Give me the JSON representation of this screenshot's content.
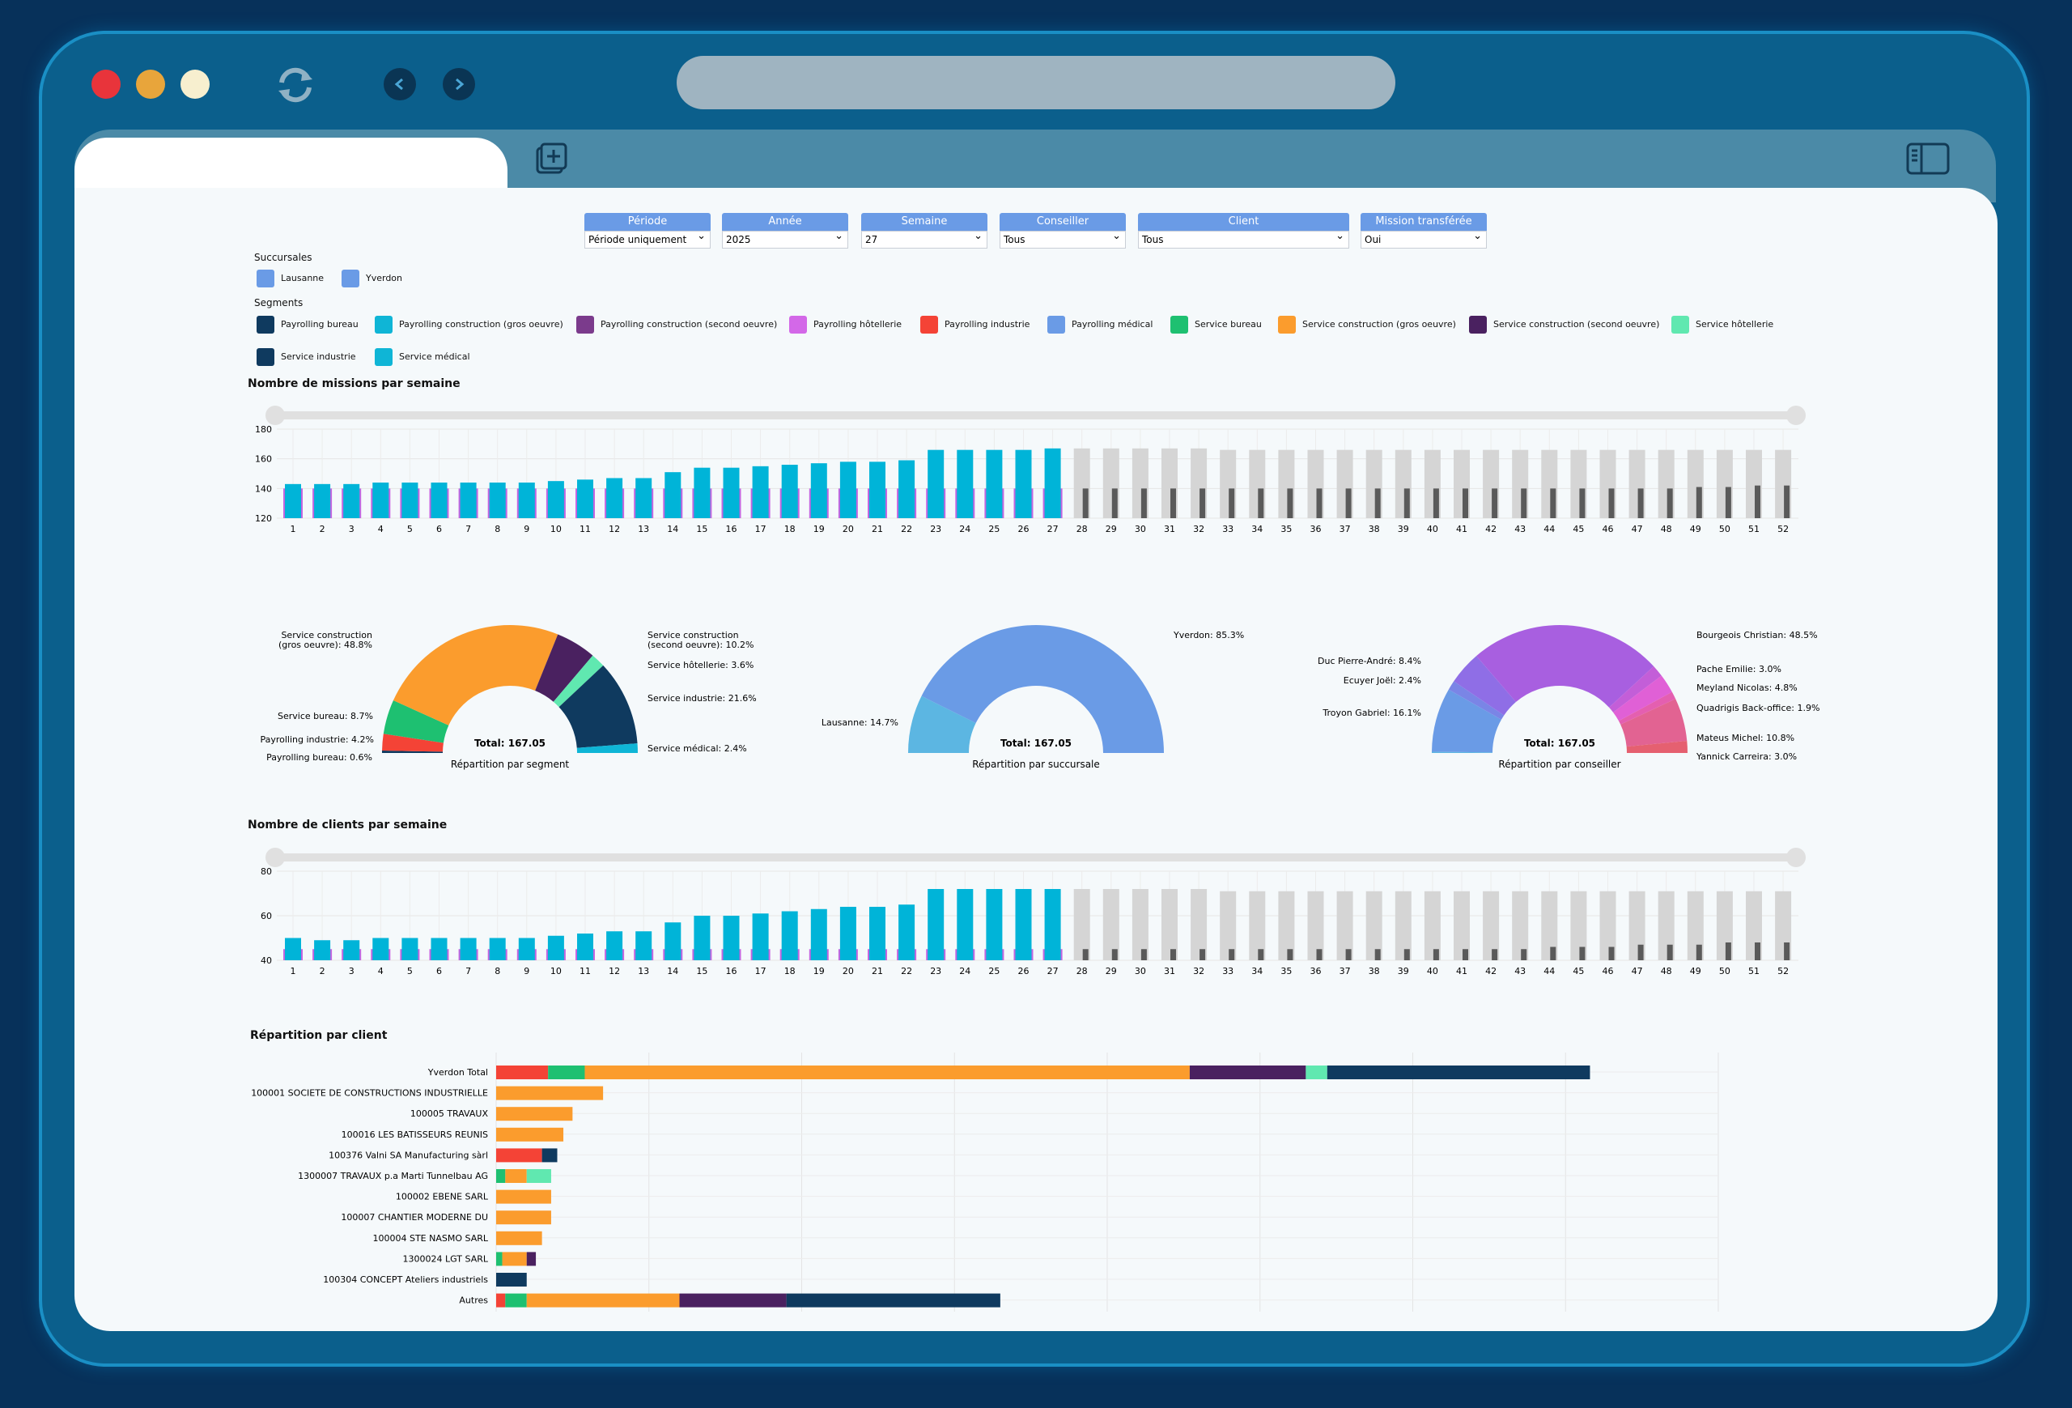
{
  "colors": {
    "accent": "#00b4d8",
    "grey": "#d5d5d5",
    "dark": "#5a5a5a",
    "frame": "#0b5f8c"
  },
  "filters": [
    {
      "label": "Période",
      "value": "Période uniquement"
    },
    {
      "label": "Année",
      "value": "2025"
    },
    {
      "label": "Semaine",
      "value": "27"
    },
    {
      "label": "Conseiller",
      "value": "Tous"
    },
    {
      "label": "Client",
      "value": "Tous"
    },
    {
      "label": "Mission transférée",
      "value": "Oui"
    }
  ],
  "succursales": {
    "title": "Succursales",
    "items": [
      {
        "label": "Lausanne",
        "color": "#6a9be6"
      },
      {
        "label": "Yverdon",
        "color": "#6a9be6"
      }
    ]
  },
  "segments": {
    "title": "Segments",
    "items": [
      {
        "label": "Payrolling bureau",
        "color": "#0f3a5f"
      },
      {
        "label": "Payrolling construction (gros oeuvre)",
        "color": "#0fb5d6"
      },
      {
        "label": "Payrolling construction (second oeuvre)",
        "color": "#7b3b8c"
      },
      {
        "label": "Payrolling hôtellerie",
        "color": "#d368e8"
      },
      {
        "label": "Payrolling industrie",
        "color": "#f44336"
      },
      {
        "label": "Payrolling médical",
        "color": "#6a9be6"
      },
      {
        "label": "Service bureau",
        "color": "#1ec071"
      },
      {
        "label": "Service construction (gros oeuvre)",
        "color": "#fb9c2d"
      },
      {
        "label": "Service construction (second oeuvre)",
        "color": "#4a2160"
      },
      {
        "label": "Service hôtellerie",
        "color": "#60e8b0"
      },
      {
        "label": "Service industrie",
        "color": "#0f3a5f"
      },
      {
        "label": "Service médical",
        "color": "#0fb5d6"
      }
    ]
  },
  "chart_data": [
    {
      "type": "bar",
      "title": "Nombre de missions par semaine",
      "x": [
        1,
        2,
        3,
        4,
        5,
        6,
        7,
        8,
        9,
        10,
        11,
        12,
        13,
        14,
        15,
        16,
        17,
        18,
        19,
        20,
        21,
        22,
        23,
        24,
        25,
        26,
        27,
        28,
        29,
        30,
        31,
        32,
        33,
        34,
        35,
        36,
        37,
        38,
        39,
        40,
        41,
        42,
        43,
        44,
        45,
        46,
        47,
        48,
        49,
        50,
        51,
        52
      ],
      "values": [
        143,
        143,
        143,
        144,
        144,
        144,
        144,
        144,
        144,
        145,
        146,
        147,
        147,
        151,
        154,
        154,
        155,
        156,
        157,
        158,
        158,
        159,
        166,
        166,
        166,
        166,
        167,
        167,
        167,
        167,
        167,
        167,
        166,
        166,
        166,
        166,
        166,
        166,
        166,
        166,
        166,
        166,
        166,
        166,
        166,
        166,
        166,
        166,
        166,
        166,
        166,
        166
      ],
      "previous": [
        140,
        140,
        140,
        140,
        140,
        140,
        140,
        140,
        140,
        140,
        140,
        140,
        140,
        140,
        140,
        140,
        140,
        140,
        140,
        140,
        140,
        140,
        140,
        140,
        140,
        140,
        140,
        140,
        140,
        140,
        140,
        140,
        140,
        140,
        140,
        140,
        140,
        140,
        140,
        140,
        140,
        140,
        140,
        140,
        140,
        140,
        140,
        140,
        141,
        141,
        142,
        142
      ],
      "ylim": [
        120,
        180
      ],
      "yticks": [
        120,
        140,
        160,
        180
      ],
      "current_week": 27
    },
    {
      "type": "pie",
      "title": "Répartition par segment",
      "total_label": "Total: 167.05",
      "slices": [
        {
          "label": "Payrolling bureau: 0.6%",
          "value": 0.6,
          "color": "#0f3a5f"
        },
        {
          "label": "Payrolling industrie: 4.2%",
          "value": 4.2,
          "color": "#f44336"
        },
        {
          "label": "Service bureau: 8.7%",
          "value": 8.7,
          "color": "#1ec071"
        },
        {
          "label": "Service construction (gros oeuvre): 48.8%",
          "value": 48.8,
          "color": "#fb9c2d"
        },
        {
          "label": "Service construction (second oeuvre): 10.2%",
          "value": 10.2,
          "color": "#4a2160"
        },
        {
          "label": "Service hôtellerie: 3.6%",
          "value": 3.6,
          "color": "#60e8b0"
        },
        {
          "label": "Service industrie: 21.6%",
          "value": 21.6,
          "color": "#0f3a5f"
        },
        {
          "label": "Service médical: 2.4%",
          "value": 2.4,
          "color": "#0fb5d6"
        }
      ]
    },
    {
      "type": "pie",
      "title": "Répartition par succursale",
      "total_label": "Total: 167.05",
      "slices": [
        {
          "label": "Lausanne: 14.7%",
          "value": 14.7,
          "color": "#5cb6e2"
        },
        {
          "label": "Yverdon: 85.3%",
          "value": 85.3,
          "color": "#6a9be6"
        }
      ]
    },
    {
      "type": "pie",
      "title": "Répartition par conseiller",
      "total_label": "Total: 167.05",
      "slices": [
        {
          "label": "",
          "value": 0.3,
          "color": "#5cb6e2"
        },
        {
          "label": "Troyon Gabriel: 16.1%",
          "value": 16.1,
          "color": "#6a9be6"
        },
        {
          "label": "Ecuyer Joël: 2.4%",
          "value": 2.4,
          "color": "#7a85e6"
        },
        {
          "label": "Duc Pierre-André: 8.4%",
          "value": 8.4,
          "color": "#8f6ee6"
        },
        {
          "label": "Bourgeois Christian: 48.5%",
          "value": 48.5,
          "color": "#a85fe0"
        },
        {
          "label": "Pache Emilie: 3.0%",
          "value": 3.0,
          "color": "#c35ed8"
        },
        {
          "label": "Meyland Nicolas: 4.8%",
          "value": 4.8,
          "color": "#e060d6"
        },
        {
          "label": "Quadrigis Back-office: 1.9%",
          "value": 1.9,
          "color": "#e45fb0"
        },
        {
          "label": "Mateus Michel: 10.8%",
          "value": 10.8,
          "color": "#e26392"
        },
        {
          "label": "Yannick Carreira: 3.0%",
          "value": 3.0,
          "color": "#e56070"
        }
      ]
    },
    {
      "type": "bar",
      "title": "Nombre de clients par semaine",
      "x": [
        1,
        2,
        3,
        4,
        5,
        6,
        7,
        8,
        9,
        10,
        11,
        12,
        13,
        14,
        15,
        16,
        17,
        18,
        19,
        20,
        21,
        22,
        23,
        24,
        25,
        26,
        27,
        28,
        29,
        30,
        31,
        32,
        33,
        34,
        35,
        36,
        37,
        38,
        39,
        40,
        41,
        42,
        43,
        44,
        45,
        46,
        47,
        48,
        49,
        50,
        51,
        52
      ],
      "values": [
        50,
        49,
        49,
        50,
        50,
        50,
        50,
        50,
        50,
        51,
        52,
        53,
        53,
        57,
        60,
        60,
        61,
        62,
        63,
        64,
        64,
        65,
        72,
        72,
        72,
        72,
        72,
        72,
        72,
        72,
        72,
        72,
        71,
        71,
        71,
        71,
        71,
        71,
        71,
        71,
        71,
        71,
        71,
        71,
        71,
        71,
        71,
        71,
        71,
        71,
        71,
        71
      ],
      "previous": [
        45,
        45,
        45,
        45,
        45,
        45,
        45,
        45,
        45,
        45,
        45,
        45,
        45,
        45,
        45,
        45,
        45,
        45,
        45,
        45,
        45,
        45,
        45,
        45,
        45,
        45,
        45,
        45,
        45,
        45,
        45,
        45,
        45,
        45,
        45,
        45,
        45,
        45,
        45,
        45,
        45,
        45,
        45,
        46,
        46,
        46,
        47,
        47,
        47,
        48,
        48,
        48
      ],
      "ylim": [
        40,
        80
      ],
      "yticks": [
        40,
        60,
        80
      ],
      "current_week": 27
    },
    {
      "type": "bar",
      "title": "Répartition par client",
      "orientation": "horizontal",
      "stacked": true,
      "rows": [
        {
          "label": "Yverdon     Total",
          "segments": [
            {
              "value": 17,
              "color": "#f44336"
            },
            {
              "value": 12,
              "color": "#1ec071"
            },
            {
              "value": 198,
              "color": "#fb9c2d"
            },
            {
              "value": 38,
              "color": "#4a2160"
            },
            {
              "value": 7,
              "color": "#60e8b0"
            },
            {
              "value": 86,
              "color": "#0f3a5f"
            }
          ]
        },
        {
          "label": "100001 SOCIETE DE CONSTRUCTIONS INDUSTRIELLE",
          "segments": [
            {
              "value": 35,
              "color": "#fb9c2d"
            }
          ]
        },
        {
          "label": "100005 TRAVAUX",
          "segments": [
            {
              "value": 25,
              "color": "#fb9c2d"
            }
          ]
        },
        {
          "label": "100016 LES BATISSEURS REUNIS",
          "segments": [
            {
              "value": 22,
              "color": "#fb9c2d"
            }
          ]
        },
        {
          "label": "100376 Valni SA Manufacturing sàrl",
          "segments": [
            {
              "value": 15,
              "color": "#f44336"
            },
            {
              "value": 5,
              "color": "#0f3a5f"
            }
          ]
        },
        {
          "label": "1300007 TRAVAUX p.a Marti Tunnelbau AG",
          "segments": [
            {
              "value": 3,
              "color": "#1ec071"
            },
            {
              "value": 7,
              "color": "#fb9c2d"
            },
            {
              "value": 8,
              "color": "#60e8b0"
            }
          ]
        },
        {
          "label": "100002 EBENE SARL",
          "segments": [
            {
              "value": 18,
              "color": "#fb9c2d"
            }
          ]
        },
        {
          "label": "100007 CHANTIER MODERNE DU",
          "segments": [
            {
              "value": 18,
              "color": "#fb9c2d"
            }
          ]
        },
        {
          "label": "100004 STE NASMO SARL",
          "segments": [
            {
              "value": 15,
              "color": "#fb9c2d"
            }
          ]
        },
        {
          "label": "1300024 LGT SARL",
          "segments": [
            {
              "value": 2,
              "color": "#1ec071"
            },
            {
              "value": 8,
              "color": "#fb9c2d"
            },
            {
              "value": 3,
              "color": "#4a2160"
            }
          ]
        },
        {
          "label": "100304 CONCEPT Ateliers industriels",
          "segments": [
            {
              "value": 10,
              "color": "#0f3a5f"
            }
          ]
        },
        {
          "label": "Autres",
          "segments": [
            {
              "value": 3,
              "color": "#f44336"
            },
            {
              "value": 7,
              "color": "#1ec071"
            },
            {
              "value": 50,
              "color": "#fb9c2d"
            },
            {
              "value": 35,
              "color": "#4a2160"
            },
            {
              "value": 70,
              "color": "#0f3a5f"
            }
          ]
        }
      ],
      "xlim": [
        0,
        400
      ],
      "xgrid": [
        0,
        50,
        100,
        150,
        200,
        250,
        300,
        350,
        400
      ]
    }
  ]
}
